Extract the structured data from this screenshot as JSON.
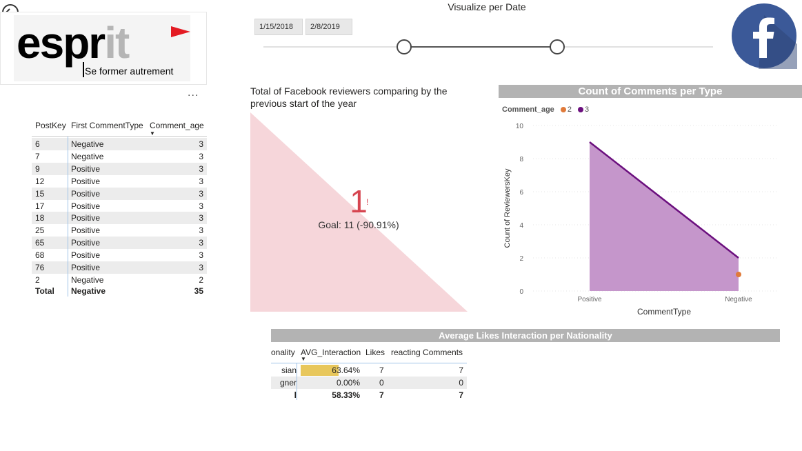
{
  "slicer": {
    "title": "Visualize per Date",
    "start_date": "1/15/2018",
    "end_date": "2/8/2019"
  },
  "logo": {
    "word_main": "espr",
    "word_accent": "it",
    "tagline": "Se former autrement"
  },
  "more_options": "...",
  "table1": {
    "headers": [
      "PostKey",
      "First CommentType",
      "Comment_age"
    ],
    "rows": [
      {
        "postkey": "6",
        "type": "Negative",
        "age": "3"
      },
      {
        "postkey": "7",
        "type": "Negative",
        "age": "3"
      },
      {
        "postkey": "9",
        "type": "Positive",
        "age": "3"
      },
      {
        "postkey": "12",
        "type": "Positive",
        "age": "3"
      },
      {
        "postkey": "15",
        "type": "Positive",
        "age": "3"
      },
      {
        "postkey": "17",
        "type": "Positive",
        "age": "3"
      },
      {
        "postkey": "18",
        "type": "Positive",
        "age": "3"
      },
      {
        "postkey": "25",
        "type": "Positive",
        "age": "3"
      },
      {
        "postkey": "65",
        "type": "Positive",
        "age": "3"
      },
      {
        "postkey": "68",
        "type": "Positive",
        "age": "3"
      },
      {
        "postkey": "76",
        "type": "Positive",
        "age": "3"
      },
      {
        "postkey": "2",
        "type": "Negative",
        "age": "2"
      }
    ],
    "total": {
      "label": "Total",
      "type": "Negative",
      "age": "35"
    }
  },
  "kpi": {
    "title": "Total of Facebook reviewers comparing by the previous start of the year",
    "value": "1",
    "alert": "!",
    "goal": "Goal: 11 (-90.91%)",
    "color": "#d64550",
    "fill": "#f6d6da"
  },
  "chart_data": {
    "type": "area",
    "title": "Count of Comments per Type",
    "legend_title": "Comment_age",
    "categories": [
      "Positive",
      "Negative"
    ],
    "series": [
      {
        "name": "2",
        "values": [
          null,
          1
        ],
        "color": "#e07a3a"
      },
      {
        "name": "3",
        "values": [
          9,
          2
        ],
        "color": "#6b0f7e"
      }
    ],
    "xlabel": "CommentType",
    "ylabel": "Count of ReviewersKey",
    "ylim": [
      0,
      10
    ],
    "yticks": [
      "0",
      "2",
      "4",
      "6",
      "8",
      "10"
    ],
    "grid": true,
    "legend": "top-left"
  },
  "table2": {
    "title": "Average Likes Interaction per Nationality",
    "headers": [
      "onality",
      "AVG_Interaction",
      "Likes",
      "reacting Comments"
    ],
    "rows": [
      {
        "nat": "sian",
        "avg": "63.64%",
        "avg_fraction": 0.6364,
        "likes": "7",
        "comments": "7"
      },
      {
        "nat": "gner",
        "avg": "0.00%",
        "avg_fraction": 0.0,
        "likes": "0",
        "comments": "0"
      }
    ],
    "total": {
      "nat": "l",
      "avg": "58.33%",
      "likes": "7",
      "comments": "7"
    }
  }
}
